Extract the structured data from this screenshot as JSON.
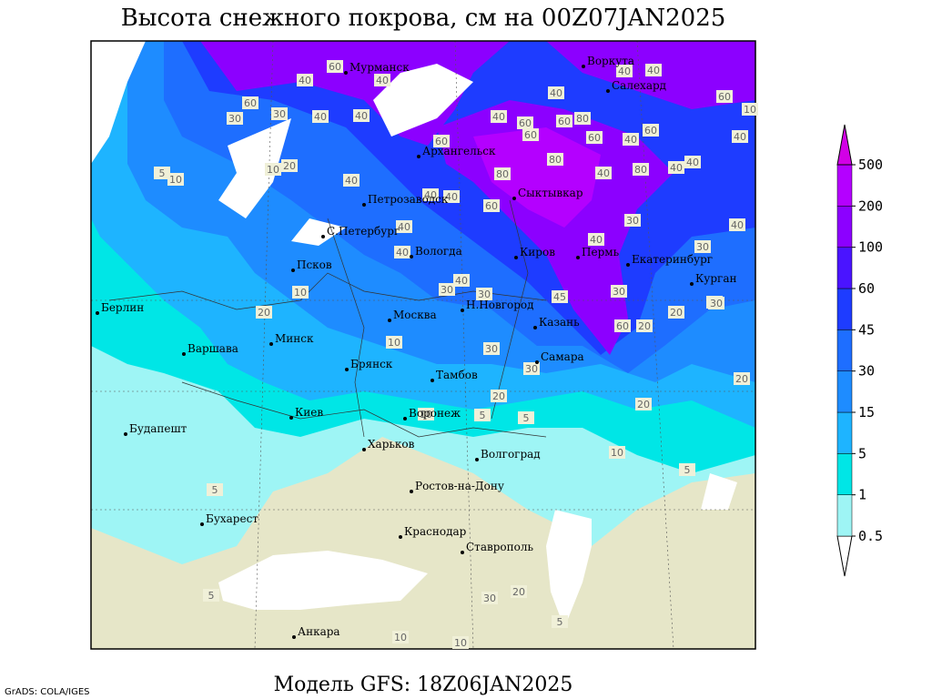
{
  "title": "Высота снежного покрова, см на 00Z07JAN2025",
  "subtitle": "Модель GFS: 18Z06JAN2025",
  "credit": "GrADS: COLA/IGES",
  "legend": {
    "levels": [
      0.5,
      1,
      5,
      15,
      30,
      45,
      60,
      100,
      200,
      500
    ],
    "colors": [
      "#ffffff",
      "#9ef5f5",
      "#00e6e6",
      "#1eb4ff",
      "#1e8cff",
      "#1e6eff",
      "#1e3cff",
      "#4a14ff",
      "#8c00ff",
      "#b400ff",
      "#d200e6"
    ]
  },
  "cities": [
    "Мурманск",
    "Воркута",
    "Салехард",
    "Архангельск",
    "Петрозаводск",
    "Сыктывкар",
    "С.Петербург",
    "Вологда",
    "Киров",
    "Пермь",
    "Екатеринбург",
    "Курган",
    "Псков",
    "Берлин",
    "Н.Новгород",
    "Москва",
    "Казань",
    "Минск",
    "Варшава",
    "Самара",
    "Брянск",
    "Тамбов",
    "Киев",
    "Воронеж",
    "Будапешт",
    "Харьков",
    "Волгоград",
    "Ростов-на-Дону",
    "Бухарест",
    "Краснодар",
    "Ставрополь",
    "Анкара"
  ],
  "contour_labels": [
    60,
    40,
    40,
    30,
    60,
    30,
    40,
    40,
    60,
    40,
    60,
    60,
    80,
    60,
    60,
    40,
    40,
    60,
    40,
    60,
    80,
    40,
    80,
    80,
    40,
    40,
    40,
    60,
    40,
    40,
    40,
    30,
    30,
    10,
    20,
    10,
    20,
    5,
    10,
    40,
    40,
    40,
    40,
    30,
    30,
    40,
    45,
    30,
    10,
    10,
    10,
    30,
    40,
    60,
    20,
    20,
    30,
    20,
    30,
    20,
    20,
    5,
    10,
    5,
    5,
    10,
    5,
    30,
    10,
    5,
    10,
    20,
    5
  ]
}
